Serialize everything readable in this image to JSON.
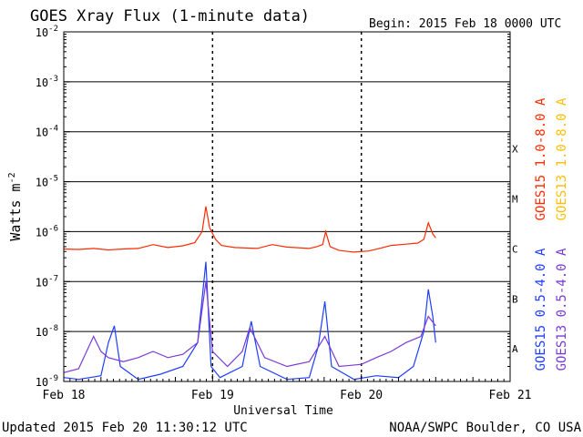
{
  "chart_data": {
    "type": "line",
    "title": "GOES Xray Flux (1-minute data)",
    "begin_label": "Begin:  2015 Feb 18 0000 UTC",
    "xlabel": "Universal Time",
    "ylabel": "Watts m",
    "ylabel_sup": "-2",
    "y_scale": "log",
    "ylim": [
      1e-09,
      0.01
    ],
    "y_ticks": [
      {
        "base": "10",
        "exp": "-2",
        "value": 0.01
      },
      {
        "base": "10",
        "exp": "-3",
        "value": 0.001
      },
      {
        "base": "10",
        "exp": "-4",
        "value": 0.0001
      },
      {
        "base": "10",
        "exp": "-5",
        "value": 1e-05
      },
      {
        "base": "10",
        "exp": "-6",
        "value": 1e-06
      },
      {
        "base": "10",
        "exp": "-7",
        "value": 1e-07
      },
      {
        "base": "10",
        "exp": "-8",
        "value": 1e-08
      },
      {
        "base": "10",
        "exp": "-9",
        "value": 1e-09
      }
    ],
    "x_range_days": [
      0,
      3
    ],
    "x_ticks": [
      {
        "label": "Feb 18",
        "day": 0
      },
      {
        "label": "Feb 19",
        "day": 1
      },
      {
        "label": "Feb 20",
        "day": 2
      },
      {
        "label": "Feb 21",
        "day": 3
      }
    ],
    "flare_classes": [
      {
        "label": "X",
        "value": 0.0001
      },
      {
        "label": "M",
        "value": 1e-05
      },
      {
        "label": "C",
        "value": 1e-06
      },
      {
        "label": "B",
        "value": 1e-07
      },
      {
        "label": "A",
        "value": 1e-08
      }
    ],
    "grid_lines": [
      0.001,
      0.0001,
      1e-05,
      1e-06,
      1e-07,
      1e-08
    ],
    "series": [
      {
        "name": "GOES15 1.0-8.0 A",
        "color": "#ff2a00",
        "points": [
          [
            0.0,
            4.5e-07
          ],
          [
            0.1,
            4.4e-07
          ],
          [
            0.2,
            4.6e-07
          ],
          [
            0.3,
            4.3e-07
          ],
          [
            0.4,
            4.5e-07
          ],
          [
            0.5,
            4.6e-07
          ],
          [
            0.6,
            5.5e-07
          ],
          [
            0.7,
            4.8e-07
          ],
          [
            0.8,
            5.2e-07
          ],
          [
            0.88,
            6e-07
          ],
          [
            0.93,
            1e-06
          ],
          [
            0.955,
            3.2e-06
          ],
          [
            0.98,
            1.2e-06
          ],
          [
            1.02,
            7e-07
          ],
          [
            1.06,
            5.3e-07
          ],
          [
            1.15,
            4.8e-07
          ],
          [
            1.3,
            4.6e-07
          ],
          [
            1.4,
            5.5e-07
          ],
          [
            1.5,
            4.9e-07
          ],
          [
            1.65,
            4.6e-07
          ],
          [
            1.7,
            5e-07
          ],
          [
            1.74,
            5.5e-07
          ],
          [
            1.76,
            1e-06
          ],
          [
            1.79,
            5e-07
          ],
          [
            1.85,
            4.2e-07
          ],
          [
            1.95,
            3.9e-07
          ],
          [
            2.05,
            4.1e-07
          ],
          [
            2.12,
            4.6e-07
          ],
          [
            2.2,
            5.3e-07
          ],
          [
            2.3,
            5.6e-07
          ],
          [
            2.38,
            5.9e-07
          ],
          [
            2.42,
            7e-07
          ],
          [
            2.45,
            1.5e-06
          ],
          [
            2.48,
            9e-07
          ],
          [
            2.5,
            7.5e-07
          ]
        ]
      },
      {
        "name": "GOES13 1.0-8.0 A",
        "color": "#ffbf00",
        "points": []
      },
      {
        "name": "GOES15 0.5-4.0 A",
        "color": "#1e3dff",
        "points": [
          [
            0.0,
            1.2e-09
          ],
          [
            0.1,
            1.1e-09
          ],
          [
            0.25,
            1.3e-09
          ],
          [
            0.3,
            6e-09
          ],
          [
            0.34,
            1.3e-08
          ],
          [
            0.38,
            2e-09
          ],
          [
            0.5,
            1.1e-09
          ],
          [
            0.65,
            1.4e-09
          ],
          [
            0.8,
            2e-09
          ],
          [
            0.9,
            6e-09
          ],
          [
            0.955,
            2.5e-07
          ],
          [
            0.99,
            2e-09
          ],
          [
            1.05,
            1.2e-09
          ],
          [
            1.2,
            2e-09
          ],
          [
            1.26,
            1.6e-08
          ],
          [
            1.32,
            2e-09
          ],
          [
            1.5,
            1.1e-09
          ],
          [
            1.65,
            1.2e-09
          ],
          [
            1.71,
            5e-09
          ],
          [
            1.755,
            4e-08
          ],
          [
            1.8,
            2e-09
          ],
          [
            1.95,
            1.1e-09
          ],
          [
            2.1,
            1.3e-09
          ],
          [
            2.25,
            1.2e-09
          ],
          [
            2.35,
            2e-09
          ],
          [
            2.42,
            1e-08
          ],
          [
            2.45,
            7e-08
          ],
          [
            2.48,
            2e-08
          ],
          [
            2.5,
            6e-09
          ]
        ]
      },
      {
        "name": "GOES13 0.5-4.0 A",
        "color": "#7a3ad4",
        "points": [
          [
            0.0,
            1.5e-09
          ],
          [
            0.1,
            1.8e-09
          ],
          [
            0.2,
            8e-09
          ],
          [
            0.25,
            4e-09
          ],
          [
            0.3,
            3e-09
          ],
          [
            0.4,
            2.5e-09
          ],
          [
            0.5,
            3e-09
          ],
          [
            0.6,
            4e-09
          ],
          [
            0.7,
            3e-09
          ],
          [
            0.8,
            3.5e-09
          ],
          [
            0.9,
            6e-09
          ],
          [
            0.955,
            1e-07
          ],
          [
            1.0,
            4e-09
          ],
          [
            1.1,
            2e-09
          ],
          [
            1.2,
            4e-09
          ],
          [
            1.25,
            1.2e-08
          ],
          [
            1.35,
            3e-09
          ],
          [
            1.5,
            2e-09
          ],
          [
            1.65,
            2.5e-09
          ],
          [
            1.755,
            8e-09
          ],
          [
            1.85,
            2e-09
          ],
          [
            2.0,
            2.2e-09
          ],
          [
            2.1,
            3e-09
          ],
          [
            2.2,
            4e-09
          ],
          [
            2.3,
            6e-09
          ],
          [
            2.4,
            8e-09
          ],
          [
            2.45,
            2e-08
          ],
          [
            2.5,
            1.3e-08
          ]
        ]
      }
    ]
  },
  "footer": {
    "updated": "Updated 2015 Feb 20 11:30:12 UTC",
    "credit": "NOAA/SWPC Boulder, CO USA"
  }
}
